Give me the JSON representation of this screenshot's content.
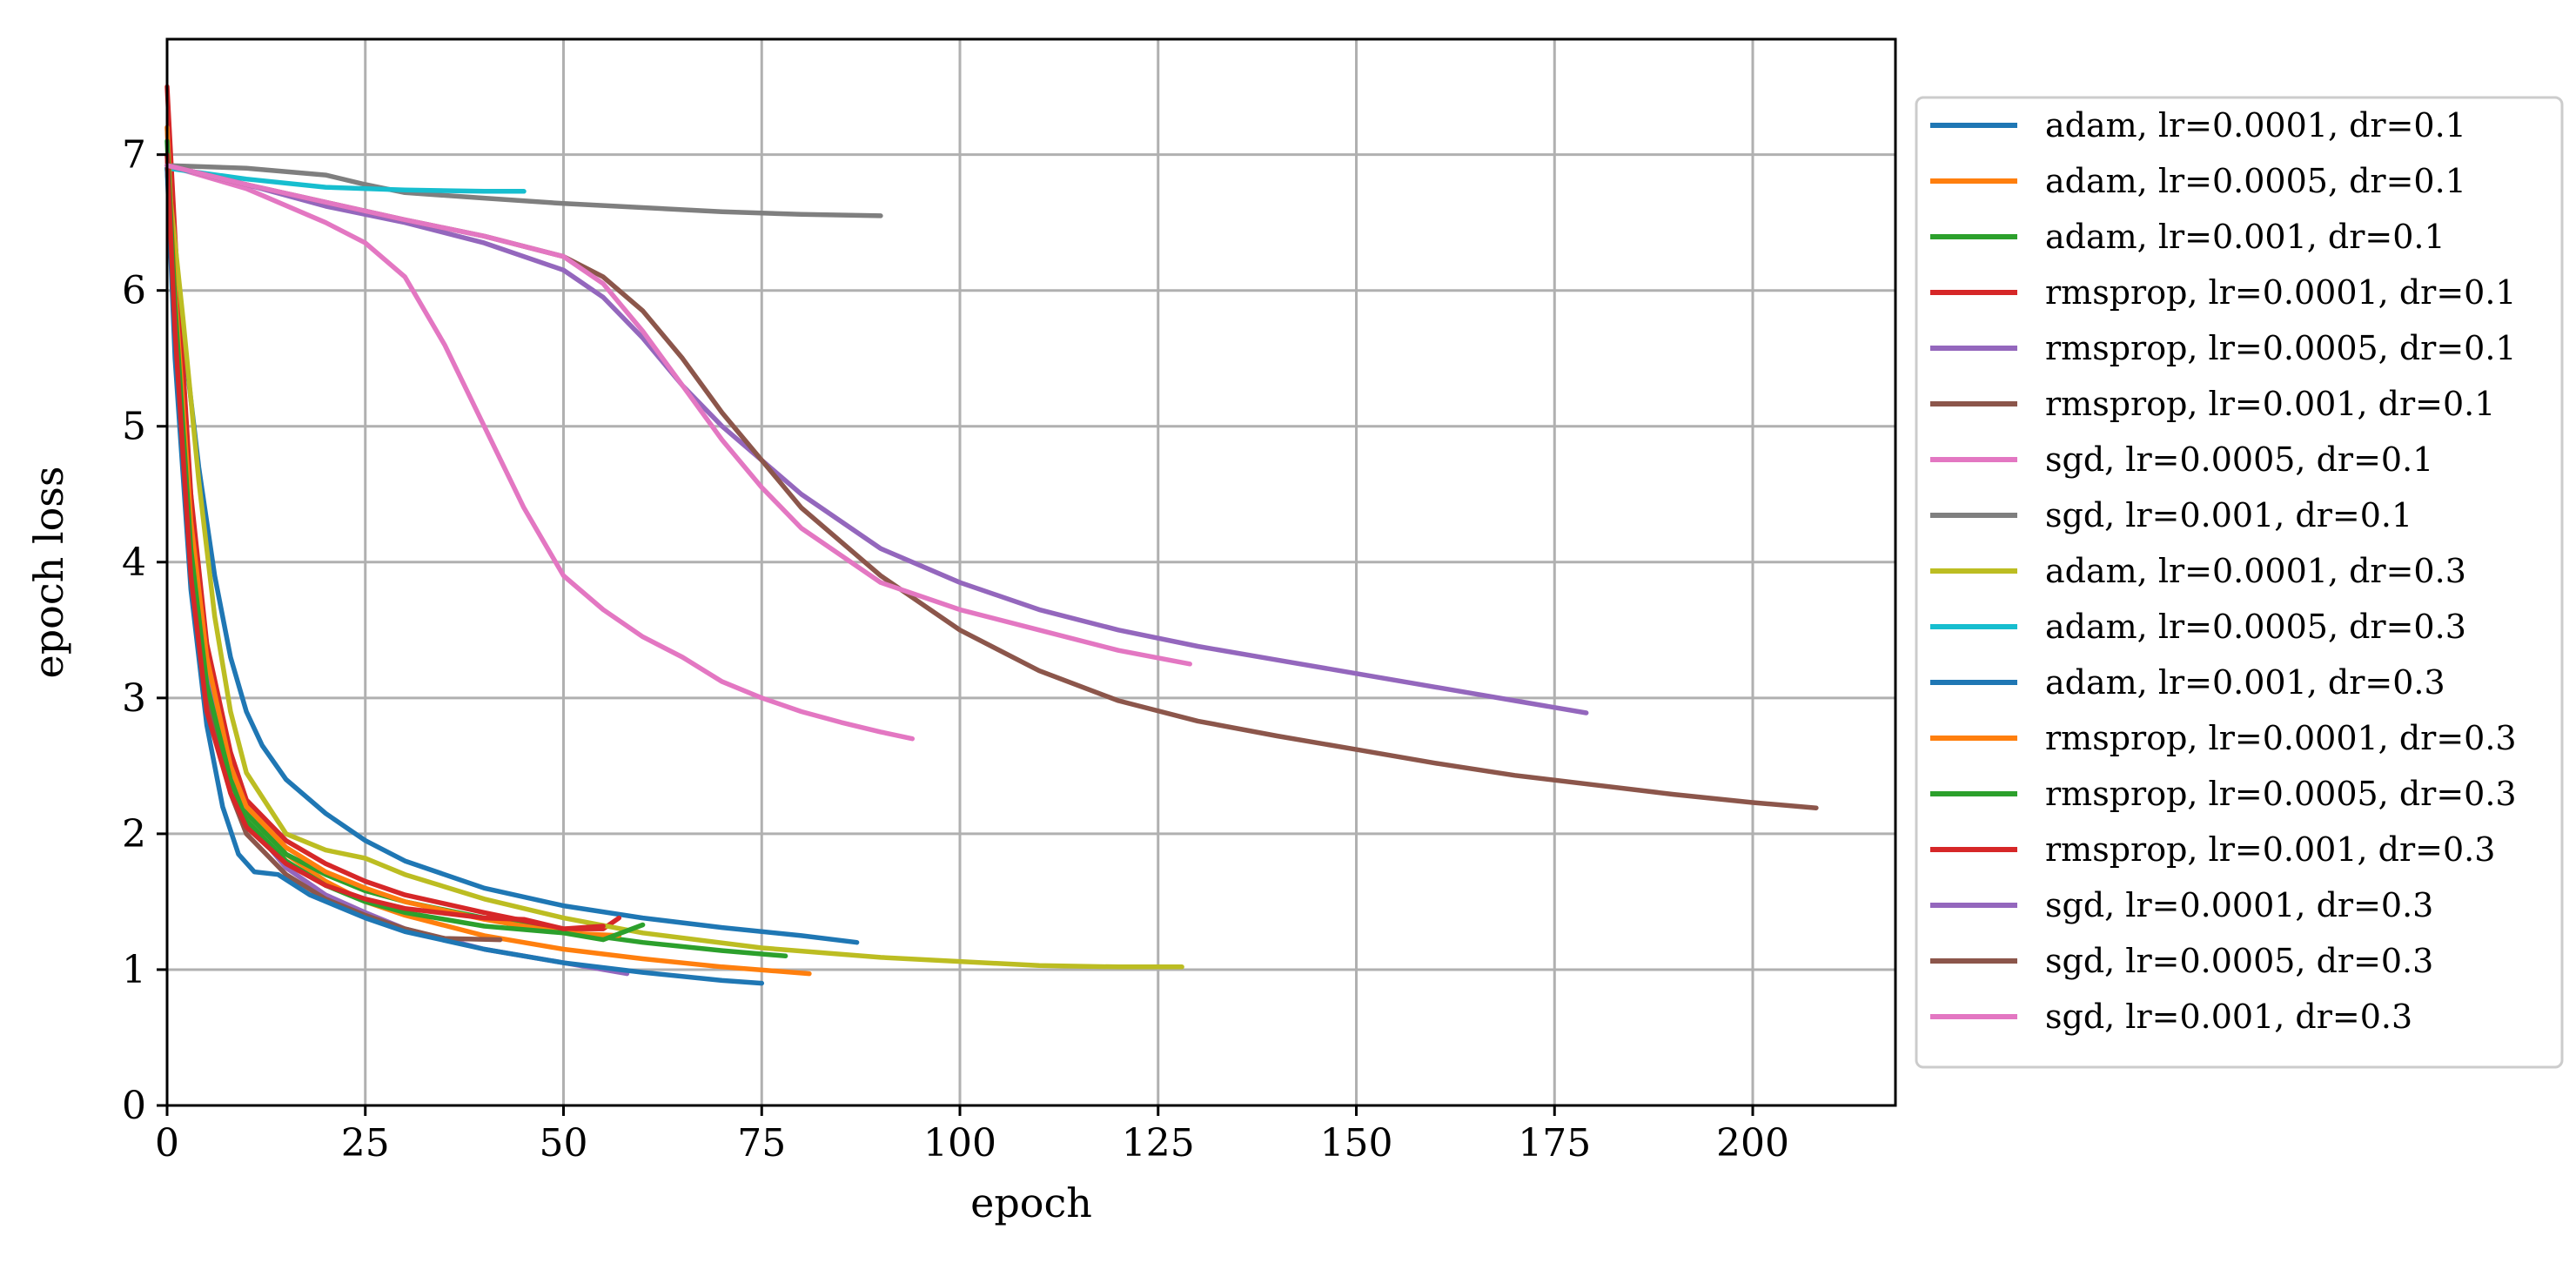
{
  "chart_data": {
    "type": "line",
    "xlabel": "epoch",
    "ylabel": "epoch loss",
    "xlim": [
      0,
      218
    ],
    "ylim": [
      0,
      7.85
    ],
    "xticks": [
      0,
      25,
      50,
      75,
      100,
      125,
      150,
      175,
      200
    ],
    "yticks": [
      0,
      1,
      2,
      3,
      4,
      5,
      6,
      7
    ],
    "grid": true,
    "legend_position": "outside-right",
    "series": [
      {
        "name": "adam, lr=0.0001, dr=0.1",
        "color": "#1f77b4",
        "x": [
          0,
          2,
          4,
          6,
          8,
          10,
          12,
          15,
          20,
          25,
          30,
          40,
          50,
          60,
          70,
          80,
          87
        ],
        "y": [
          6.9,
          5.7,
          4.7,
          3.9,
          3.3,
          2.9,
          2.65,
          2.4,
          2.15,
          1.95,
          1.8,
          1.6,
          1.47,
          1.38,
          1.31,
          1.25,
          1.2
        ]
      },
      {
        "name": "adam, lr=0.0005, dr=0.1",
        "color": "#ff7f0e",
        "x": [
          0,
          2,
          4,
          6,
          8,
          10,
          15,
          20,
          25,
          30,
          40,
          50,
          60,
          70,
          81
        ],
        "y": [
          6.9,
          5.2,
          3.8,
          3.0,
          2.5,
          2.2,
          1.85,
          1.65,
          1.5,
          1.4,
          1.25,
          1.15,
          1.08,
          1.02,
          0.97
        ]
      },
      {
        "name": "adam, lr=0.001, dr=0.1",
        "color": "#2ca02c",
        "x": [
          0,
          2,
          4,
          6,
          8,
          10,
          15,
          20,
          25,
          30,
          40,
          50,
          60,
          70,
          78
        ],
        "y": [
          6.9,
          5.0,
          3.6,
          2.8,
          2.4,
          2.15,
          1.85,
          1.7,
          1.58,
          1.5,
          1.38,
          1.28,
          1.2,
          1.14,
          1.1
        ]
      },
      {
        "name": "rmsprop, lr=0.0001, dr=0.1",
        "color": "#d62728",
        "x": [
          0,
          1,
          3,
          5,
          8,
          10,
          15,
          20,
          25,
          30,
          40,
          50,
          55,
          57
        ],
        "y": [
          7.5,
          6.4,
          4.5,
          3.4,
          2.6,
          2.25,
          1.95,
          1.78,
          1.65,
          1.55,
          1.42,
          1.3,
          1.3,
          1.38
        ]
      },
      {
        "name": "rmsprop, lr=0.0005, dr=0.1",
        "color": "#9467bd",
        "x": [
          0,
          1,
          3,
          5,
          8,
          10,
          15,
          20,
          25,
          30,
          40,
          50,
          58
        ],
        "y": [
          7.2,
          6.0,
          4.2,
          3.2,
          2.4,
          2.1,
          1.75,
          1.55,
          1.42,
          1.3,
          1.15,
          1.05,
          0.97
        ]
      },
      {
        "name": "rmsprop, lr=0.001, dr=0.1",
        "color": "#8c564b",
        "x": [
          0,
          1,
          3,
          5,
          8,
          10,
          15,
          20,
          25,
          30,
          35,
          42
        ],
        "y": [
          7.0,
          5.8,
          4.0,
          3.0,
          2.3,
          2.0,
          1.7,
          1.52,
          1.4,
          1.3,
          1.23,
          1.22
        ]
      },
      {
        "name": "sgd, lr=0.0005, dr=0.1",
        "color": "#e377c2",
        "x": [
          0,
          10,
          20,
          25,
          30,
          35,
          40,
          45,
          50,
          55,
          60,
          65,
          70,
          75,
          80,
          85,
          90,
          94
        ],
        "y": [
          6.92,
          6.75,
          6.5,
          6.35,
          6.1,
          5.6,
          5.0,
          4.4,
          3.9,
          3.65,
          3.45,
          3.3,
          3.12,
          3.0,
          2.9,
          2.82,
          2.75,
          2.7
        ]
      },
      {
        "name": "sgd, lr=0.001, dr=0.1",
        "color": "#7f7f7f",
        "x": [
          0,
          10,
          20,
          25,
          30,
          40,
          50,
          60,
          70,
          80,
          90
        ],
        "y": [
          6.92,
          6.9,
          6.85,
          6.78,
          6.72,
          6.68,
          6.64,
          6.61,
          6.58,
          6.56,
          6.55
        ]
      },
      {
        "name": "adam, lr=0.0001, dr=0.3",
        "color": "#bcbd22",
        "x": [
          0,
          2,
          4,
          6,
          8,
          10,
          15,
          20,
          25,
          30,
          40,
          50,
          60,
          75,
          90,
          100,
          110,
          120,
          128
        ],
        "y": [
          6.9,
          5.8,
          4.6,
          3.6,
          2.9,
          2.45,
          2.0,
          1.88,
          1.82,
          1.7,
          1.52,
          1.38,
          1.27,
          1.16,
          1.09,
          1.06,
          1.03,
          1.02,
          1.02
        ]
      },
      {
        "name": "adam, lr=0.0005, dr=0.3",
        "color": "#17becf",
        "x": [
          0,
          10,
          20,
          30,
          40,
          45
        ],
        "y": [
          6.9,
          6.82,
          6.76,
          6.74,
          6.73,
          6.73
        ]
      },
      {
        "name": "adam, lr=0.001, dr=0.3",
        "color": "#1f77b4",
        "x": [
          0,
          1,
          3,
          5,
          7,
          9,
          11,
          14,
          18,
          25,
          30,
          40,
          50,
          60,
          70,
          75
        ],
        "y": [
          6.9,
          5.5,
          3.8,
          2.8,
          2.2,
          1.85,
          1.72,
          1.7,
          1.55,
          1.38,
          1.28,
          1.15,
          1.05,
          0.98,
          0.92,
          0.9
        ]
      },
      {
        "name": "rmsprop, lr=0.0001, dr=0.3",
        "color": "#ff7f0e",
        "x": [
          0,
          1,
          3,
          5,
          8,
          10,
          15,
          20,
          25,
          30,
          40,
          50,
          57
        ],
        "y": [
          7.2,
          6.0,
          4.3,
          3.3,
          2.5,
          2.2,
          1.9,
          1.72,
          1.6,
          1.5,
          1.37,
          1.27,
          1.25
        ]
      },
      {
        "name": "rmsprop, lr=0.0005, dr=0.3",
        "color": "#2ca02c",
        "x": [
          0,
          1,
          3,
          5,
          8,
          10,
          15,
          20,
          25,
          30,
          40,
          50,
          55,
          60
        ],
        "y": [
          7.1,
          5.9,
          4.1,
          3.1,
          2.4,
          2.1,
          1.8,
          1.62,
          1.5,
          1.42,
          1.32,
          1.27,
          1.22,
          1.33
        ]
      },
      {
        "name": "rmsprop, lr=0.001, dr=0.3",
        "color": "#d62728",
        "x": [
          0,
          1,
          3,
          5,
          8,
          10,
          15,
          20,
          25,
          30,
          40,
          45,
          50,
          55
        ],
        "y": [
          7.0,
          5.7,
          3.9,
          2.9,
          2.3,
          2.05,
          1.78,
          1.62,
          1.52,
          1.45,
          1.38,
          1.37,
          1.3,
          1.32
        ]
      },
      {
        "name": "sgd, lr=0.0001, dr=0.3",
        "color": "#9467bd",
        "x": [
          0,
          10,
          20,
          30,
          40,
          50,
          55,
          60,
          65,
          70,
          80,
          90,
          100,
          110,
          120,
          130,
          140,
          150,
          160,
          170,
          179
        ],
        "y": [
          6.92,
          6.78,
          6.62,
          6.5,
          6.35,
          6.15,
          5.95,
          5.65,
          5.3,
          5.0,
          4.5,
          4.1,
          3.85,
          3.65,
          3.5,
          3.38,
          3.28,
          3.18,
          3.08,
          2.98,
          2.89
        ]
      },
      {
        "name": "sgd, lr=0.0005, dr=0.3",
        "color": "#8c564b",
        "x": [
          0,
          10,
          20,
          30,
          40,
          50,
          55,
          60,
          65,
          70,
          80,
          90,
          100,
          110,
          120,
          130,
          140,
          150,
          160,
          170,
          180,
          190,
          200,
          208
        ],
        "y": [
          6.92,
          6.78,
          6.65,
          6.52,
          6.4,
          6.25,
          6.1,
          5.85,
          5.5,
          5.1,
          4.4,
          3.9,
          3.5,
          3.2,
          2.98,
          2.83,
          2.72,
          2.62,
          2.52,
          2.43,
          2.36,
          2.29,
          2.23,
          2.19
        ]
      },
      {
        "name": "sgd, lr=0.001, dr=0.3",
        "color": "#e377c2",
        "x": [
          0,
          10,
          20,
          30,
          40,
          50,
          55,
          60,
          65,
          70,
          75,
          80,
          90,
          100,
          110,
          120,
          129
        ],
        "y": [
          6.92,
          6.78,
          6.65,
          6.52,
          6.4,
          6.25,
          6.05,
          5.7,
          5.3,
          4.9,
          4.55,
          4.25,
          3.85,
          3.65,
          3.5,
          3.35,
          3.25
        ]
      }
    ]
  }
}
